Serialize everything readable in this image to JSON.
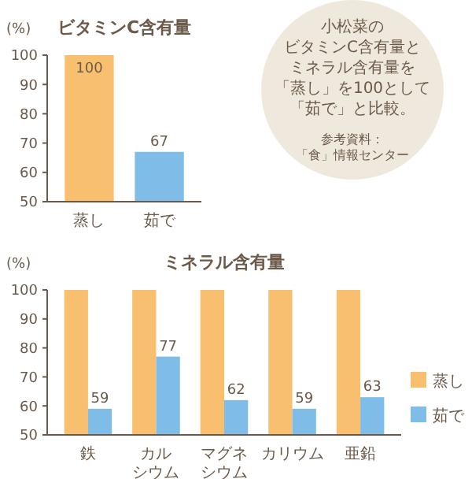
{
  "chart_data": [
    {
      "type": "bar",
      "title": "ビタミンC含有量",
      "ylabel": "(%)",
      "categories": [
        "蒸し",
        "茹で"
      ],
      "values": [
        100,
        67
      ],
      "colors": [
        "#f8c06e",
        "#7fbde8"
      ],
      "ylim": [
        50,
        100
      ],
      "yticks": [
        50,
        60,
        70,
        80,
        90,
        100
      ],
      "data_labels": true,
      "grid": false,
      "legend": false
    },
    {
      "type": "bar",
      "title": "ミネラル含有量",
      "ylabel": "(%)",
      "categories": [
        "鉄",
        "カルシウム",
        "マグネシウム",
        "カリウム",
        "亜鉛"
      ],
      "series": [
        {
          "name": "蒸し",
          "color": "#f8c06e",
          "values": [
            100,
            100,
            100,
            100,
            100
          ]
        },
        {
          "name": "茹で",
          "color": "#7fbde8",
          "values": [
            59,
            77,
            62,
            59,
            63
          ],
          "value_labels": [
            "59",
            "77",
            "62",
            "59",
            "63"
          ]
        }
      ],
      "ylim": [
        50,
        100
      ],
      "yticks": [
        50,
        60,
        70,
        80,
        90,
        100
      ],
      "grid": false,
      "legend": "right"
    },
    {
      "type": "other",
      "annotations": [
        "小松菜の",
        "ビタミンC含有量と",
        "ミネラル含有量を",
        "「蒸し」を100として",
        "「茹で」と比較。",
        "参考資料：",
        "「食」情報センター"
      ]
    }
  ]
}
